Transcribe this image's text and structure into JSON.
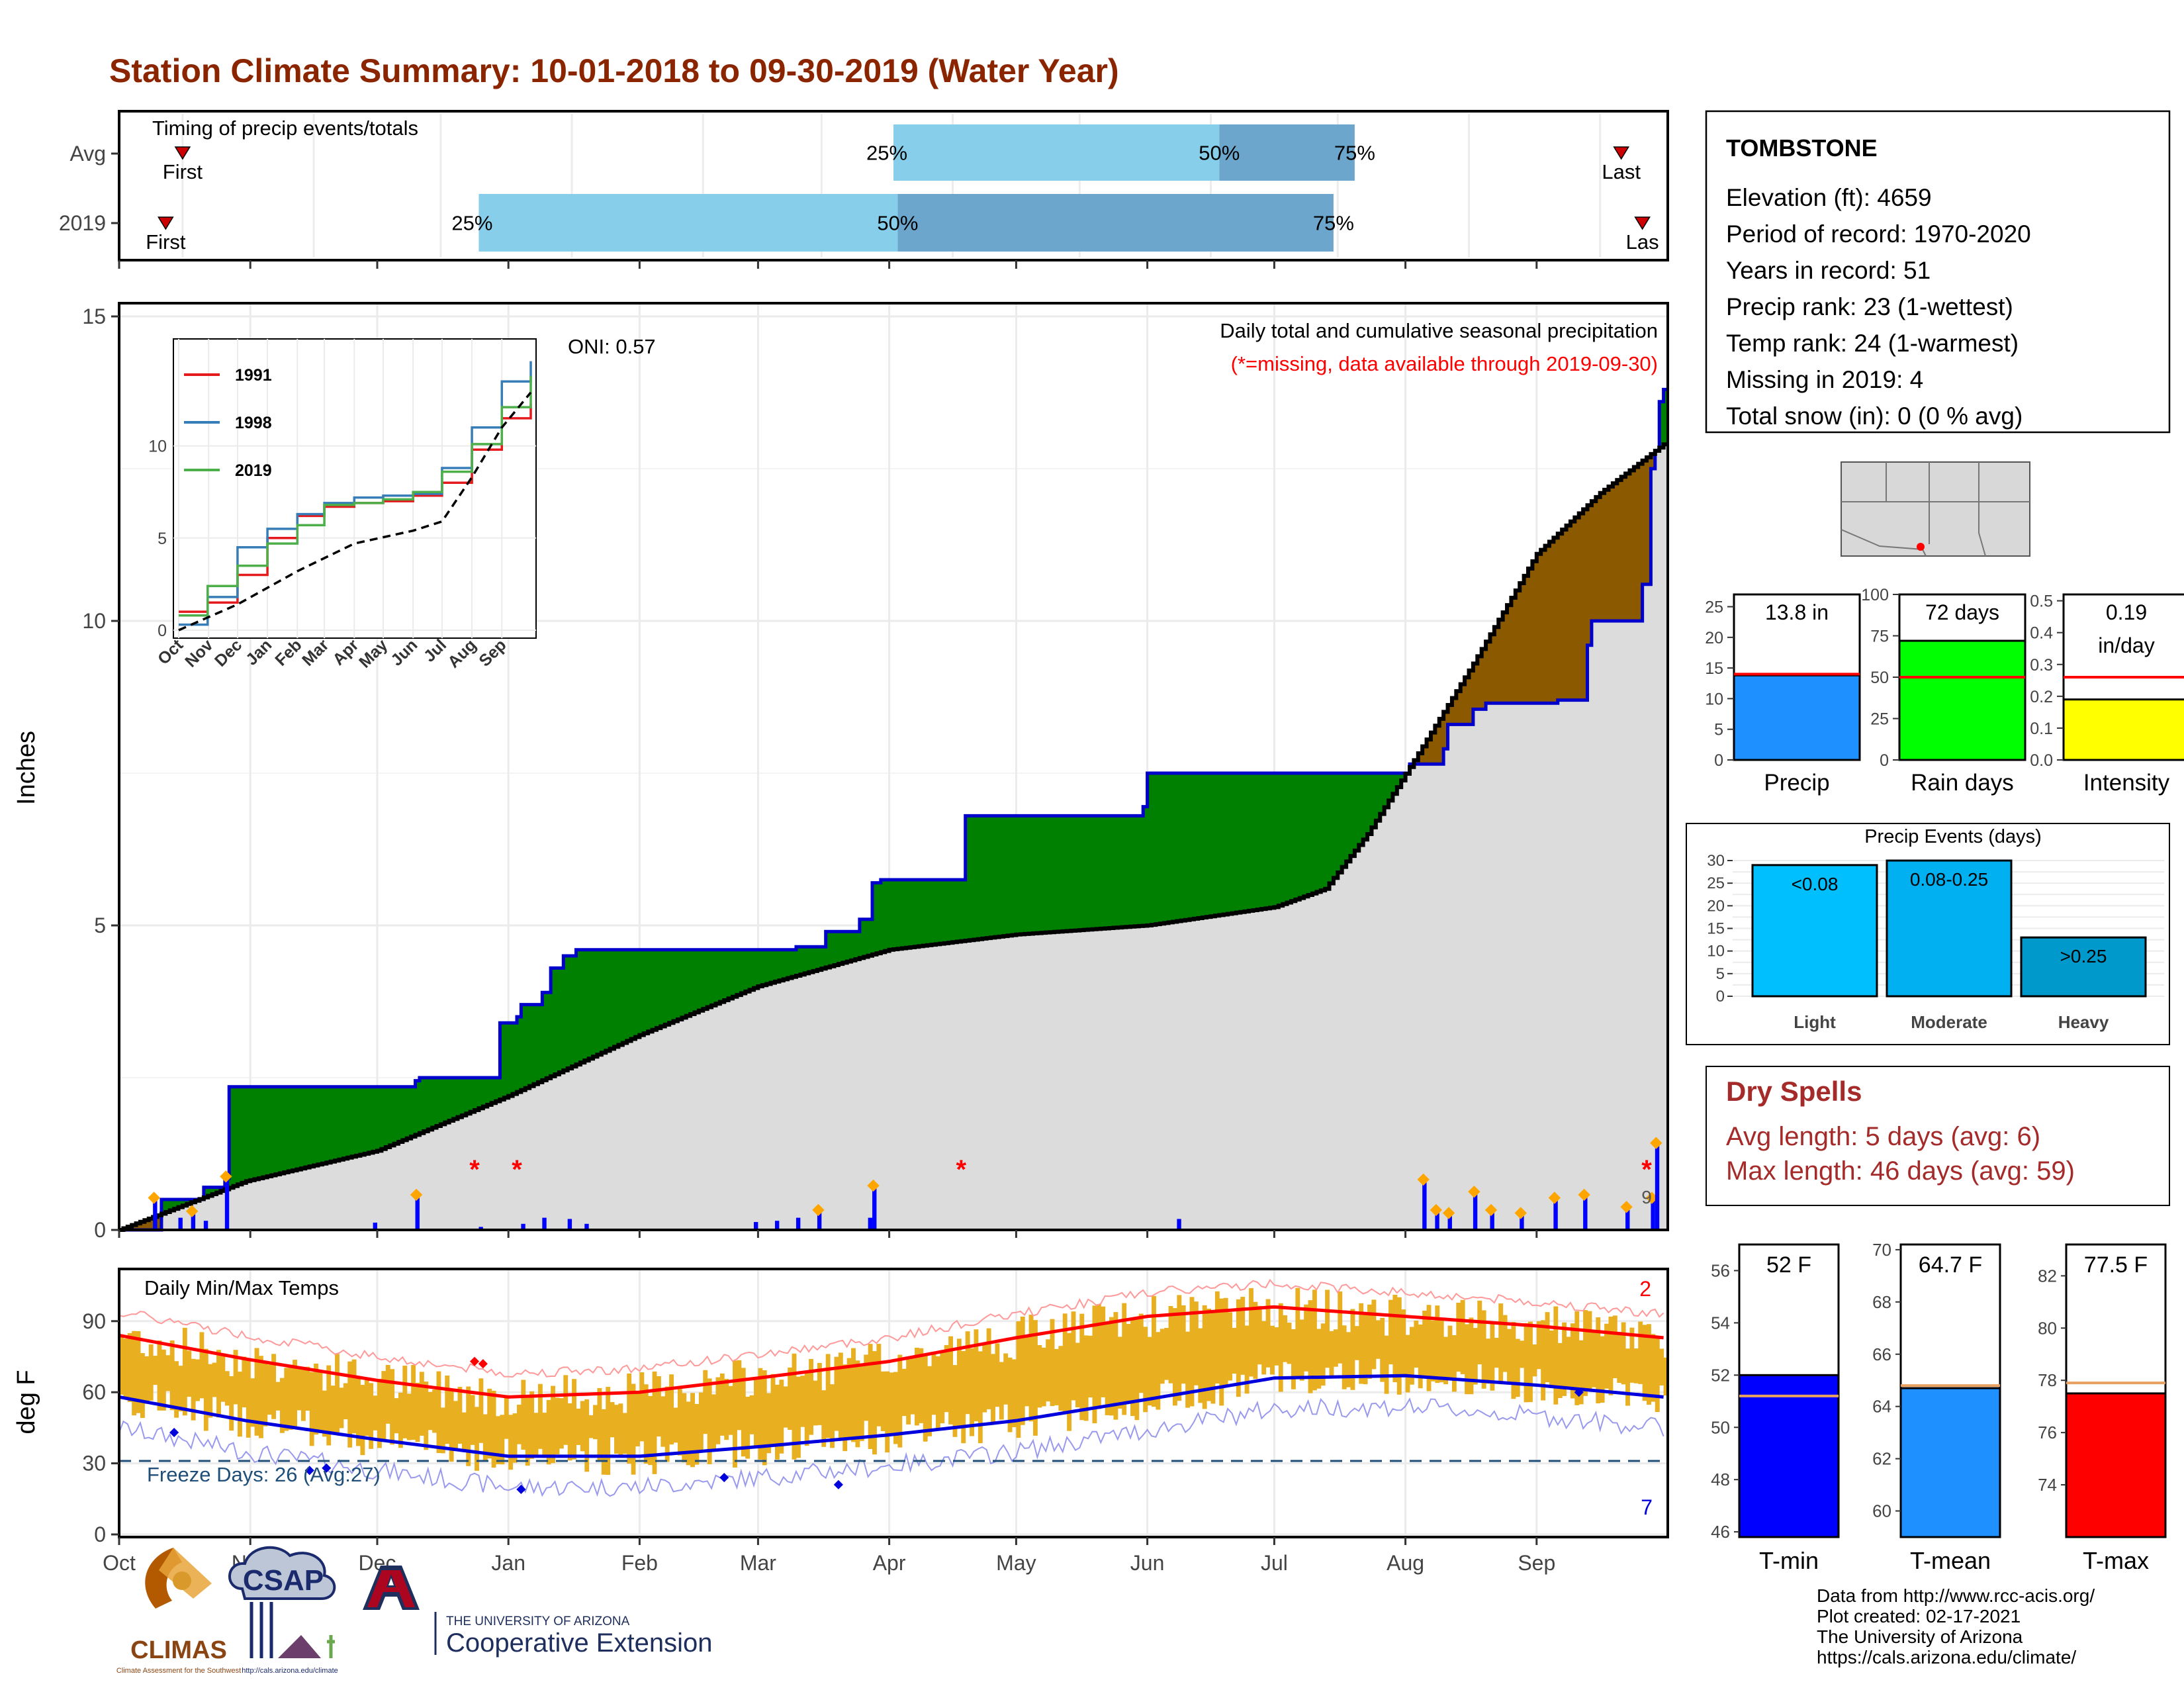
{
  "title": "Station Climate Summary: 10-01-2018 to 09-30-2019 (Water Year)",
  "timing": {
    "label": "Timing of precip events/totals",
    "rows": [
      {
        "name": "Avg",
        "first_label": "First",
        "last_label": "Last",
        "q25": "25%",
        "q50": "50%",
        "q75": "75%",
        "first_day": 15,
        "last_day": 355,
        "p25_day": 183,
        "p50_day": 260,
        "p75_day": 292
      },
      {
        "name": "2019",
        "first_label": "First",
        "last_label": "Las",
        "q25": "25%",
        "q50": "50%",
        "q75": "75%",
        "first_day": 11,
        "last_day": 360,
        "p25_day": 85,
        "p50_day": 184,
        "p75_day": 287
      }
    ]
  },
  "precip": {
    "ylabel": "Inches",
    "yticks": [
      "0",
      "5",
      "10",
      "15"
    ],
    "title1": "Daily total and cumulative seasonal precipitation",
    "title2": "(*=missing, data available through 2019-09-30)",
    "oni": "ONI: 0.57",
    "months": [
      "Oct",
      "Nov",
      "Dec",
      "Jan",
      "Feb",
      "Mar",
      "Apr",
      "May",
      "Jun",
      "Jul",
      "Aug",
      "Sep"
    ],
    "month_start_days": [
      0,
      31,
      61,
      92,
      123,
      151,
      182,
      212,
      243,
      273,
      304,
      335
    ],
    "count_label": "9"
  },
  "inset": {
    "legend": [
      "1991",
      "1998",
      "2019"
    ],
    "colors": [
      "#e41a1c",
      "#377eb8",
      "#4daf4a"
    ],
    "yticks": [
      "0",
      "5",
      "10"
    ],
    "xticks": [
      "Oct",
      "Nov",
      "Dec",
      "Jan",
      "Feb",
      "Mar",
      "Apr",
      "May",
      "Jun",
      "Jul",
      "Aug",
      "Sep"
    ]
  },
  "temps": {
    "ylabel": "deg F",
    "title": "Daily Min/Max Temps",
    "yticks": [
      "0",
      "30",
      "60",
      "90"
    ],
    "freeze": "Freeze Days: 26 (Avg:27)",
    "count_max": "2",
    "count_min": "7"
  },
  "station": {
    "name": "TOMBSTONE",
    "lines": [
      "Elevation (ft): 4659",
      "Period of record: 1970-2020",
      "Years in record: 51",
      "Precip rank: 23 (1-wettest)",
      "Temp rank: 24 (1-warmest)",
      "Missing in 2019: 4",
      "Total snow (in): 0 (0 % avg)"
    ]
  },
  "summary_bars": [
    {
      "label": "Precip",
      "value_text": "13.8 in",
      "value": 13.8,
      "avg": 14,
      "ymax": 27,
      "ticks": [
        "0",
        "5",
        "10",
        "15",
        "20",
        "25"
      ],
      "color": "#1e90ff"
    },
    {
      "label": "Rain days",
      "value_text": "72 days",
      "value": 72,
      "avg": 50,
      "ymax": 100,
      "ticks": [
        "0",
        "25",
        "50",
        "75",
        "100"
      ],
      "color": "#00ff00"
    },
    {
      "label": "Intensity",
      "value_text": "0.19\nin/day",
      "value": 0.19,
      "avg": 0.26,
      "ymax": 0.52,
      "ticks": [
        "0.0",
        "0.1",
        "0.2",
        "0.3",
        "0.4",
        "0.5"
      ],
      "color": "#ffff00"
    }
  ],
  "events": {
    "title": "Precip Events (days)",
    "ticks": [
      "0",
      "5",
      "10",
      "15",
      "20",
      "25",
      "30"
    ],
    "bars": [
      {
        "label": "Light",
        "inner": "<0.08",
        "value": 29,
        "color": "#00bfff"
      },
      {
        "label": "Moderate",
        "inner": "0.08-0.25",
        "value": 30,
        "color": "#00b0f0"
      },
      {
        "label": "Heavy",
        "inner": ">0.25",
        "value": 13,
        "color": "#0099cc"
      }
    ]
  },
  "dry_spells": {
    "title": "Dry Spells",
    "line1": "Avg length: 5 days (avg: 6)",
    "line2": "Max length: 46 days (avg: 59)"
  },
  "temp_bars": [
    {
      "label": "T-min",
      "value_text": "52 F",
      "value": 52.0,
      "avg": 51.2,
      "ymin": 45.8,
      "ymax": 57.0,
      "ticks": [
        "46",
        "48",
        "50",
        "52",
        "54",
        "56"
      ],
      "color": "#0000ff"
    },
    {
      "label": "T-mean",
      "value_text": "64.7 F",
      "value": 64.7,
      "avg": 64.8,
      "ymin": 59.0,
      "ymax": 70.2,
      "ticks": [
        "60",
        "62",
        "64",
        "66",
        "68",
        "70"
      ],
      "color": "#1e90ff"
    },
    {
      "label": "T-max",
      "value_text": "77.5 F",
      "value": 77.5,
      "avg": 77.9,
      "ymin": 72.0,
      "ymax": 83.2,
      "ticks": [
        "74",
        "76",
        "78",
        "80",
        "82"
      ],
      "color": "#ff0000"
    }
  ],
  "footer": {
    "lines": [
      "Data from http://www.rcc-acis.org/",
      "Plot created: 02-17-2021",
      "The University of Arizona",
      "https://cals.arizona.edu/climate/"
    ]
  },
  "logos": {
    "climas": "CLIMAS",
    "csap": "CSAP",
    "ua_small": "THE UNIVERSITY OF ARIZONA",
    "ua_big": "Cooperative Extension",
    "csap_url": "http://cals.arizona.edu/climate",
    "climas_sub": "Climate Assessment for the Southwest"
  },
  "chart_data": {
    "type": "area",
    "title": "Daily total and cumulative seasonal precipitation",
    "ylabel": "Inches",
    "ylim": [
      0,
      15
    ],
    "x_unit": "day of water year (0 = Oct 1)",
    "observed_cumulative": [
      [
        0,
        0
      ],
      [
        10,
        0.5
      ],
      [
        20,
        0.7
      ],
      [
        25,
        0.85
      ],
      [
        26,
        2.35
      ],
      [
        60,
        2.35
      ],
      [
        70,
        2.45
      ],
      [
        71,
        2.5
      ],
      [
        72,
        2.5
      ],
      [
        90,
        3.4
      ],
      [
        94,
        3.5
      ],
      [
        95,
        3.7
      ],
      [
        100,
        3.9
      ],
      [
        102,
        4.3
      ],
      [
        105,
        4.5
      ],
      [
        108,
        4.6
      ],
      [
        160,
        4.65
      ],
      [
        167,
        4.9
      ],
      [
        175,
        5.1
      ],
      [
        178,
        5.7
      ],
      [
        180,
        5.75
      ],
      [
        199,
        5.75
      ],
      [
        200,
        6.8
      ],
      [
        230,
        6.8
      ],
      [
        242,
        6.95
      ],
      [
        243,
        7.5
      ],
      [
        305,
        7.65
      ],
      [
        313,
        7.9
      ],
      [
        314,
        8.3
      ],
      [
        320,
        8.55
      ],
      [
        323,
        8.65
      ],
      [
        340,
        8.7
      ],
      [
        347,
        9.6
      ],
      [
        348,
        10.0
      ],
      [
        360,
        10.6
      ],
      [
        361,
        10.6
      ],
      [
        362,
        12.5
      ],
      [
        363,
        12.8
      ],
      [
        364,
        13.6
      ],
      [
        365,
        13.8
      ]
    ],
    "average_cumulative": [
      [
        0,
        0
      ],
      [
        30,
        0.8
      ],
      [
        61,
        1.3
      ],
      [
        92,
        2.2
      ],
      [
        123,
        3.2
      ],
      [
        151,
        4.0
      ],
      [
        182,
        4.6
      ],
      [
        212,
        4.85
      ],
      [
        243,
        5.0
      ],
      [
        273,
        5.3
      ],
      [
        285,
        5.6
      ],
      [
        295,
        6.5
      ],
      [
        305,
        7.6
      ],
      [
        320,
        9.3
      ],
      [
        335,
        11.1
      ],
      [
        350,
        12.1
      ],
      [
        365,
        12.9
      ]
    ],
    "inset": {
      "type": "line",
      "series": [
        {
          "name": "1991",
          "values": [
            [
              0,
              1
            ],
            [
              30,
              1.5
            ],
            [
              61,
              3
            ],
            [
              92,
              5
            ],
            [
              123,
              6.2
            ],
            [
              151,
              6.7
            ],
            [
              182,
              6.9
            ],
            [
              212,
              7.0
            ],
            [
              243,
              7.3
            ],
            [
              273,
              8.0
            ],
            [
              304,
              9.8
            ],
            [
              335,
              11.5
            ],
            [
              365,
              12.3
            ]
          ]
        },
        {
          "name": "1998",
          "values": [
            [
              0,
              0.3
            ],
            [
              30,
              1.8
            ],
            [
              61,
              4.5
            ],
            [
              92,
              5.5
            ],
            [
              123,
              6.3
            ],
            [
              151,
              6.9
            ],
            [
              182,
              7.2
            ],
            [
              212,
              7.3
            ],
            [
              243,
              7.4
            ],
            [
              273,
              8.8
            ],
            [
              304,
              11.0
            ],
            [
              335,
              13.5
            ],
            [
              365,
              14.6
            ]
          ]
        },
        {
          "name": "2019",
          "values": [
            [
              0,
              0.8
            ],
            [
              30,
              2.4
            ],
            [
              61,
              3.5
            ],
            [
              92,
              4.7
            ],
            [
              123,
              5.7
            ],
            [
              151,
              6.8
            ],
            [
              182,
              6.9
            ],
            [
              212,
              7.1
            ],
            [
              243,
              7.5
            ],
            [
              273,
              8.6
            ],
            [
              304,
              10.1
            ],
            [
              335,
              12.1
            ],
            [
              365,
              13.8
            ]
          ]
        },
        {
          "name": "",
          "values": [
            [
              0,
              0
            ],
            [
              61,
              1.4
            ],
            [
              123,
              3.2
            ],
            [
              182,
              4.7
            ],
            [
              243,
              5.4
            ],
            [
              273,
              5.9
            ],
            [
              304,
              8.3
            ],
            [
              335,
              11.0
            ],
            [
              365,
              12.9
            ]
          ]
        }
      ]
    },
    "daily_precip": [
      [
        8,
        0.5
      ],
      [
        14,
        0.2
      ],
      [
        17,
        0.28
      ],
      [
        20,
        0.15
      ],
      [
        25,
        0.85
      ],
      [
        60,
        0.12
      ],
      [
        70,
        0.55
      ],
      [
        85,
        0.05
      ],
      [
        95,
        0.1
      ],
      [
        100,
        0.2
      ],
      [
        106,
        0.18
      ],
      [
        110,
        0.1
      ],
      [
        150,
        0.13
      ],
      [
        155,
        0.15
      ],
      [
        160,
        0.2
      ],
      [
        165,
        0.3
      ],
      [
        177,
        0.2
      ],
      [
        178,
        0.7
      ],
      [
        250,
        0.18
      ],
      [
        308,
        0.8
      ],
      [
        311,
        0.3
      ],
      [
        314,
        0.25
      ],
      [
        320,
        0.6
      ],
      [
        324,
        0.3
      ],
      [
        331,
        0.25
      ],
      [
        339,
        0.5
      ],
      [
        346,
        0.55
      ],
      [
        356,
        0.35
      ],
      [
        362,
        0.5
      ],
      [
        363,
        1.4
      ]
    ],
    "temp_avg_max": [
      [
        0,
        84
      ],
      [
        30,
        74
      ],
      [
        61,
        65
      ],
      [
        92,
        58
      ],
      [
        123,
        60
      ],
      [
        151,
        66
      ],
      [
        182,
        73
      ],
      [
        212,
        83
      ],
      [
        243,
        92
      ],
      [
        273,
        96
      ],
      [
        304,
        92
      ],
      [
        335,
        88
      ],
      [
        365,
        83
      ]
    ],
    "temp_avg_min": [
      [
        0,
        58
      ],
      [
        30,
        48
      ],
      [
        61,
        40
      ],
      [
        92,
        33
      ],
      [
        123,
        33
      ],
      [
        151,
        37
      ],
      [
        182,
        42
      ],
      [
        212,
        48
      ],
      [
        243,
        57
      ],
      [
        273,
        66
      ],
      [
        304,
        67
      ],
      [
        335,
        63
      ],
      [
        365,
        58
      ]
    ]
  }
}
